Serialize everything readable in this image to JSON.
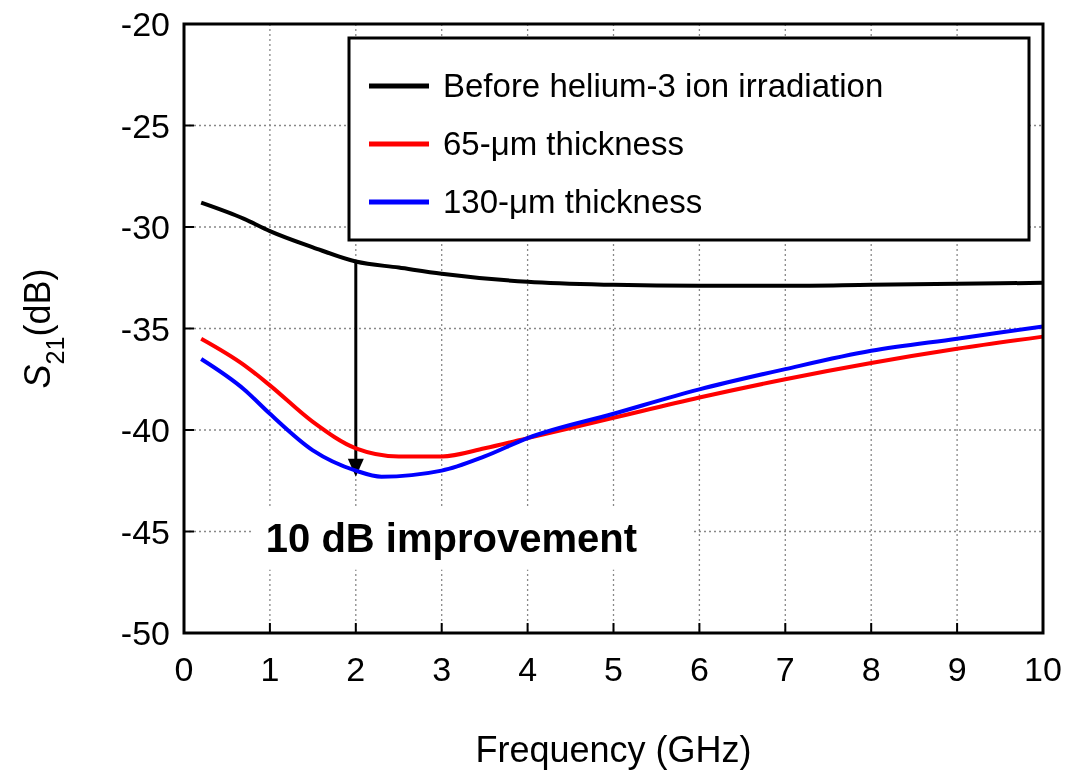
{
  "chart_data": {
    "type": "line",
    "xlabel": "Frequency (GHz)",
    "ylabel": "S$_{21}$(dB)",
    "xlim": [
      0,
      10
    ],
    "ylim": [
      -50,
      -20
    ],
    "xticks": [
      0,
      1,
      2,
      3,
      4,
      5,
      6,
      7,
      8,
      9,
      10
    ],
    "yticks": [
      -50,
      -45,
      -40,
      -35,
      -30,
      -25,
      -20
    ],
    "grid": true,
    "legend": "top right",
    "line_style": "solid",
    "marker": "none",
    "annotations": [
      {
        "text": "10 dB improvement",
        "x": 2,
        "y": -42.3
      }
    ],
    "series": [
      {
        "name": "Before helium-3 ion irradiation",
        "color": "#000000",
        "x": [
          0.2,
          0.7,
          1,
          1.5,
          2,
          2.5,
          3,
          4,
          5,
          6,
          7,
          8,
          9,
          10
        ],
        "values": [
          -28.8,
          -29.6,
          -30.2,
          -31.0,
          -31.7,
          -32.0,
          -32.3,
          -32.7,
          -32.85,
          -32.9,
          -32.9,
          -32.85,
          -32.8,
          -32.75
        ]
      },
      {
        "name": "65-μm thickness",
        "color": "#ff0000",
        "x": [
          0.2,
          0.7,
          1,
          1.5,
          2,
          2.5,
          3,
          3.5,
          4,
          5,
          6,
          7,
          8,
          9,
          10
        ],
        "values": [
          -35.5,
          -36.8,
          -37.8,
          -39.6,
          -40.9,
          -41.3,
          -41.3,
          -40.9,
          -40.4,
          -39.4,
          -38.4,
          -37.5,
          -36.7,
          -36.0,
          -35.4
        ]
      },
      {
        "name": "130-μm thickness",
        "color": "#0000ff",
        "x": [
          0.2,
          0.7,
          1,
          1.5,
          2,
          2.3,
          3,
          3.5,
          4,
          5,
          6,
          7,
          8,
          9,
          10
        ],
        "values": [
          -36.5,
          -38.0,
          -39.2,
          -41.0,
          -42.0,
          -42.3,
          -42.0,
          -41.3,
          -40.4,
          -39.2,
          -38.0,
          -37.0,
          -36.1,
          -35.5,
          -34.9
        ]
      }
    ]
  }
}
